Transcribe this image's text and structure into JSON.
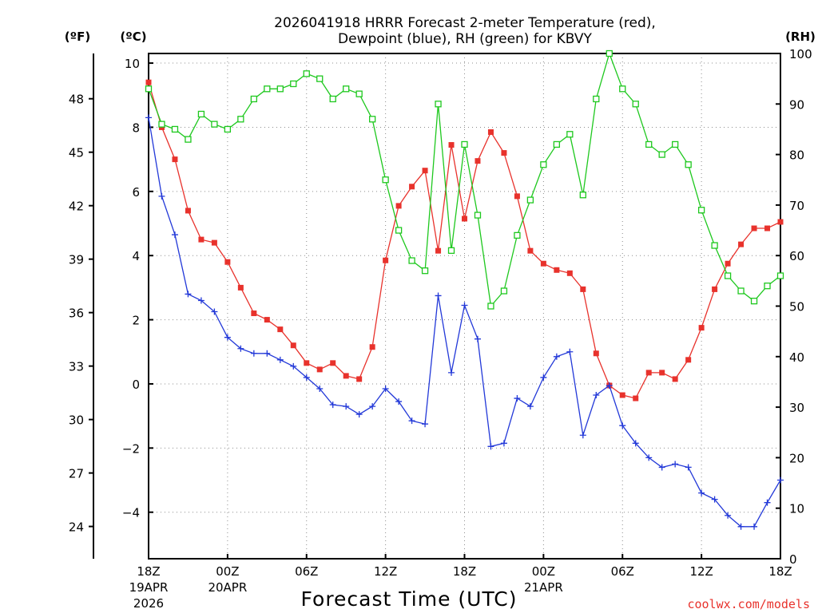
{
  "title": {
    "line1": "2026041918 HRRR Forecast 2-meter Temperature (red),",
    "line2": "Dewpoint (blue), RH (green) for KBVY"
  },
  "units": {
    "fahrenheit": "(ºF)",
    "celsius": "(ºC)",
    "rh": "(RH)"
  },
  "credit": "coolwx.com/models",
  "colors": {
    "temperature": "#e8322c",
    "dewpoint": "#2238d8",
    "rh": "#1ec81e",
    "grid": "#8c8c8c"
  },
  "chart_data": {
    "type": "line",
    "xlabel": "Forecast Time (UTC)",
    "x_hours": [
      0,
      1,
      2,
      3,
      4,
      5,
      6,
      7,
      8,
      9,
      10,
      11,
      12,
      13,
      14,
      15,
      16,
      17,
      18,
      19,
      20,
      21,
      22,
      23,
      24,
      25,
      26,
      27,
      28,
      29,
      30,
      31,
      32,
      33,
      34,
      35,
      36,
      37,
      38,
      39,
      40,
      41,
      42,
      43,
      44,
      45,
      46,
      47,
      48
    ],
    "x_ticks": [
      {
        "hour": 0,
        "label": "18Z",
        "date1": "19APR",
        "date2": "2026"
      },
      {
        "hour": 6,
        "label": "00Z",
        "date1": "20APR",
        "date2": ""
      },
      {
        "hour": 12,
        "label": "06Z",
        "date1": "",
        "date2": ""
      },
      {
        "hour": 18,
        "label": "12Z",
        "date1": "",
        "date2": ""
      },
      {
        "hour": 24,
        "label": "18Z",
        "date1": "",
        "date2": ""
      },
      {
        "hour": 30,
        "label": "00Z",
        "date1": "21APR",
        "date2": ""
      },
      {
        "hour": 36,
        "label": "06Z",
        "date1": "",
        "date2": ""
      },
      {
        "hour": 42,
        "label": "12Z",
        "date1": "",
        "date2": ""
      },
      {
        "hour": 48,
        "label": "18Z",
        "date1": "",
        "date2": ""
      }
    ],
    "celsius_axis": {
      "ylim": [
        -5.45,
        10.3
      ],
      "ticks": [
        -4,
        -2,
        0,
        2,
        4,
        6,
        8,
        10
      ]
    },
    "fahrenheit_axis": {
      "ticks": [
        24,
        27,
        30,
        33,
        36,
        39,
        42,
        45,
        48
      ]
    },
    "rh_axis": {
      "ylim": [
        0,
        100
      ],
      "ticks": [
        0,
        10,
        20,
        30,
        40,
        50,
        60,
        70,
        80,
        90,
        100
      ]
    },
    "series": [
      {
        "name": "Temperature (red)",
        "axis": "celsius",
        "marker": "filled-square",
        "values": [
          9.4,
          8.0,
          7.0,
          5.4,
          4.5,
          4.4,
          3.8,
          3.0,
          2.2,
          2.0,
          1.7,
          1.2,
          0.65,
          0.45,
          0.65,
          0.25,
          0.15,
          1.15,
          3.85,
          5.55,
          6.15,
          6.65,
          4.15,
          7.45,
          5.15,
          6.95,
          7.85,
          7.2,
          5.85,
          4.15,
          3.75,
          3.55,
          3.45,
          2.95,
          0.95,
          -0.05,
          -0.35,
          -0.45,
          0.35,
          0.35,
          0.15,
          0.75,
          1.75,
          2.95,
          3.75,
          4.35,
          4.85,
          4.85,
          5.05
        ]
      },
      {
        "name": "Dewpoint (blue)",
        "axis": "celsius",
        "marker": "plus",
        "values": [
          8.3,
          5.85,
          4.65,
          2.8,
          2.6,
          2.25,
          1.45,
          1.1,
          0.95,
          0.95,
          0.75,
          0.55,
          0.2,
          -0.15,
          -0.65,
          -0.7,
          -0.95,
          -0.7,
          -0.15,
          -0.55,
          -1.15,
          -1.25,
          2.75,
          0.35,
          2.45,
          1.4,
          -1.95,
          -1.85,
          -0.45,
          -0.7,
          0.2,
          0.85,
          1.0,
          -1.6,
          -0.35,
          -0.05,
          -1.3,
          -1.85,
          -2.3,
          -2.6,
          -2.5,
          -2.6,
          -3.4,
          -3.6,
          -4.1,
          -4.45,
          -4.45,
          -3.7,
          -3.0
        ]
      },
      {
        "name": "RH (green)",
        "axis": "rh",
        "marker": "open-square",
        "values": [
          93,
          86,
          85,
          83,
          88,
          86,
          85,
          87,
          91,
          93,
          93,
          94,
          96,
          95,
          91,
          93,
          92,
          87,
          75,
          65,
          59,
          57,
          90,
          61,
          82,
          68,
          50,
          53,
          64,
          71,
          78,
          82,
          84,
          72,
          91,
          100,
          93,
          90,
          82,
          80,
          82,
          78,
          69,
          62,
          56,
          53,
          51,
          54,
          56
        ]
      }
    ]
  }
}
